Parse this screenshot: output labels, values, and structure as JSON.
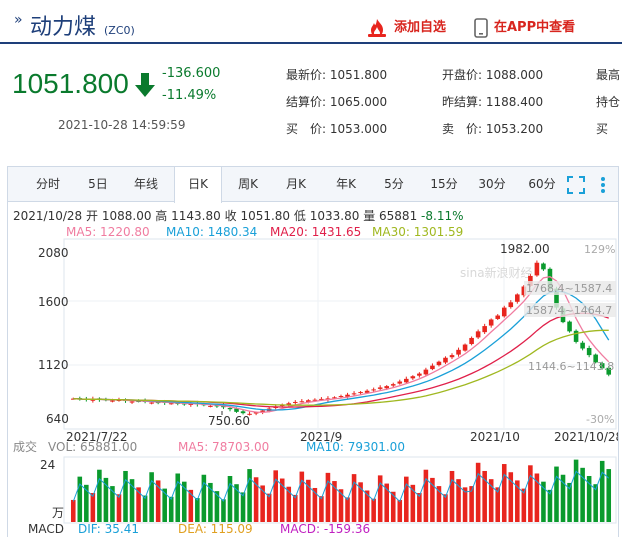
{
  "header": {
    "title": "动力煤",
    "code": "(ZC0)",
    "add_watchlist": "添加自选",
    "open_app": "在APP中查看"
  },
  "quote": {
    "price": "1051.800",
    "change": "-136.600",
    "change_pct": "-11.49%",
    "time": "2021-10-28 14:59:59",
    "latest_label": "最新价:",
    "latest": "1051.800",
    "settle_label": "结算价:",
    "settle": "1065.000",
    "bid_label": "买　价:",
    "bid": "1053.000",
    "open_label": "开盘价:",
    "open": "1088.000",
    "prev_settle_label": "昨结算:",
    "prev_settle": "1188.400",
    "ask_label": "卖　价:",
    "ask": "1053.200",
    "col3_row1": "最高",
    "col3_row2": "持仓",
    "col3_row3": "买"
  },
  "tabs": [
    "分时",
    "5日",
    "年线",
    "日K",
    "周K",
    "月K",
    "年K",
    "5分",
    "15分",
    "30分",
    "60分"
  ],
  "active_tab": "日K",
  "kline_info": {
    "date": "2021/10/28",
    "open_label": "开",
    "open": "1088.00",
    "high_label": "高",
    "high": "1143.80",
    "close_label": "收",
    "close": "1051.80",
    "low_label": "低",
    "low": "1033.80",
    "vol_label": "量",
    "vol": "65881",
    "pct": "-8.11%"
  },
  "ma": {
    "ma5": "MA5: 1220.80",
    "ma10": "MA10: 1480.34",
    "ma20": "MA20: 1431.65",
    "ma30": "MA30: 1301.59"
  },
  "chart_labels": {
    "y_ticks": [
      "2080",
      "1600",
      "1120",
      "640"
    ],
    "pct_top": "129%",
    "pct_bottom": "-30%",
    "high_mark": "1982.00",
    "low_mark": "750.60",
    "range1": "1768.4~1587.4",
    "range2": "1587.4~1464.7",
    "range3": "1144.6~1143.8",
    "x_ticks": [
      "2021/7/22",
      "2021/9",
      "2021/10",
      "2021/10/28"
    ],
    "watermark": "sina新浪财经"
  },
  "volume": {
    "title": "成交",
    "vol": "VOL: 65881.00",
    "ma5": "MA5: 78703.00",
    "ma10": "MA10: 79301.00",
    "top_tick": "24",
    "unit": "万"
  },
  "macd": {
    "title": "MACD",
    "dif": "DIF: 35.41",
    "dea": "DEA: 115.09",
    "macd": "MACD: -159.36"
  },
  "colors": {
    "up": "#e8251e",
    "down": "#0a9a2d",
    "ma5": "#f07ca0",
    "ma10": "#1aa0d8",
    "ma20": "#e0204a",
    "ma30": "#a0b820",
    "brand": "#1e3f7a"
  },
  "chart_data": {
    "type": "candlestick",
    "x_start": "2021/7/22",
    "x_end": "2021/10/28",
    "ylim": [
      640,
      2080
    ],
    "series_close_approx": [
      870,
      865,
      860,
      868,
      862,
      858,
      855,
      860,
      852,
      848,
      850,
      845,
      840,
      842,
      838,
      835,
      830,
      828,
      832,
      826,
      820,
      815,
      812,
      805,
      790,
      770,
      760,
      755,
      765,
      780,
      795,
      810,
      825,
      835,
      845,
      850,
      858,
      862,
      868,
      872,
      880,
      890,
      900,
      910,
      920,
      930,
      940,
      955,
      965,
      980,
      1000,
      1020,
      1040,
      1060,
      1090,
      1120,
      1150,
      1180,
      1200,
      1240,
      1280,
      1330,
      1380,
      1420,
      1470,
      1500,
      1560,
      1600,
      1660,
      1720,
      1800,
      1900,
      1850,
      1700,
      1560,
      1450,
      1380,
      1300,
      1250,
      1200,
      1145,
      1100,
      1052
    ]
  }
}
